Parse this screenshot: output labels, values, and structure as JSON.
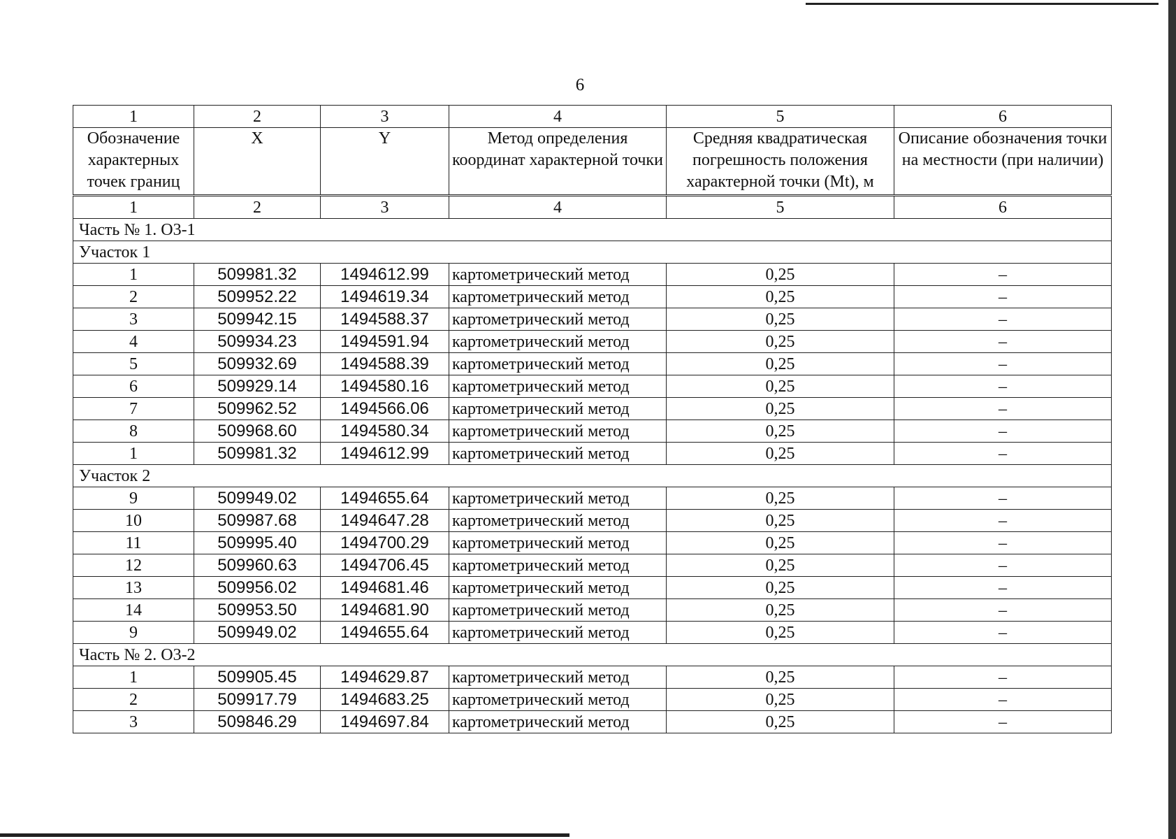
{
  "page_number": "6",
  "column_numbers": [
    "1",
    "2",
    "3",
    "4",
    "5",
    "6"
  ],
  "column_headers": [
    "Обозначение характерных точек границ",
    "X",
    "Y",
    "Метод определения координат характерной точки",
    "Средняя квадратическая погрешность положения характерной точки (Mt), м",
    "Описание обозначения точки на местности (при наличии)"
  ],
  "sections": [
    {
      "title": "Часть № 1. О3-1",
      "rows": []
    },
    {
      "title": "Участок 1",
      "rows": [
        [
          "1",
          "509981.32",
          "1494612.99",
          "картометрический метод",
          "0,25",
          "–"
        ],
        [
          "2",
          "509952.22",
          "1494619.34",
          "картометрический метод",
          "0,25",
          "–"
        ],
        [
          "3",
          "509942.15",
          "1494588.37",
          "картометрический метод",
          "0,25",
          "–"
        ],
        [
          "4",
          "509934.23",
          "1494591.94",
          "картометрический метод",
          "0,25",
          "–"
        ],
        [
          "5",
          "509932.69",
          "1494588.39",
          "картометрический метод",
          "0,25",
          "–"
        ],
        [
          "6",
          "509929.14",
          "1494580.16",
          "картометрический метод",
          "0,25",
          "–"
        ],
        [
          "7",
          "509962.52",
          "1494566.06",
          "картометрический метод",
          "0,25",
          "–"
        ],
        [
          "8",
          "509968.60",
          "1494580.34",
          "картометрический метод",
          "0,25",
          "–"
        ],
        [
          "1",
          "509981.32",
          "1494612.99",
          "картометрический метод",
          "0,25",
          "–"
        ]
      ]
    },
    {
      "title": "Участок 2",
      "rows": [
        [
          "9",
          "509949.02",
          "1494655.64",
          "картометрический метод",
          "0,25",
          "–"
        ],
        [
          "10",
          "509987.68",
          "1494647.28",
          "картометрический метод",
          "0,25",
          "–"
        ],
        [
          "11",
          "509995.40",
          "1494700.29",
          "картометрический метод",
          "0,25",
          "–"
        ],
        [
          "12",
          "509960.63",
          "1494706.45",
          "картометрический метод",
          "0,25",
          "–"
        ],
        [
          "13",
          "509956.02",
          "1494681.46",
          "картометрический метод",
          "0,25",
          "–"
        ],
        [
          "14",
          "509953.50",
          "1494681.90",
          "картометрический метод",
          "0,25",
          "–"
        ],
        [
          "9",
          "509949.02",
          "1494655.64",
          "картометрический метод",
          "0,25",
          "–"
        ]
      ]
    },
    {
      "title": "Часть № 2. О3-2",
      "rows": [
        [
          "1",
          "509905.45",
          "1494629.87",
          "картометрический метод",
          "0,25",
          "–"
        ],
        [
          "2",
          "509917.79",
          "1494683.25",
          "картометрический метод",
          "0,25",
          "–"
        ],
        [
          "3",
          "509846.29",
          "1494697.84",
          "картометрический метод",
          "0,25",
          "–"
        ]
      ]
    }
  ]
}
